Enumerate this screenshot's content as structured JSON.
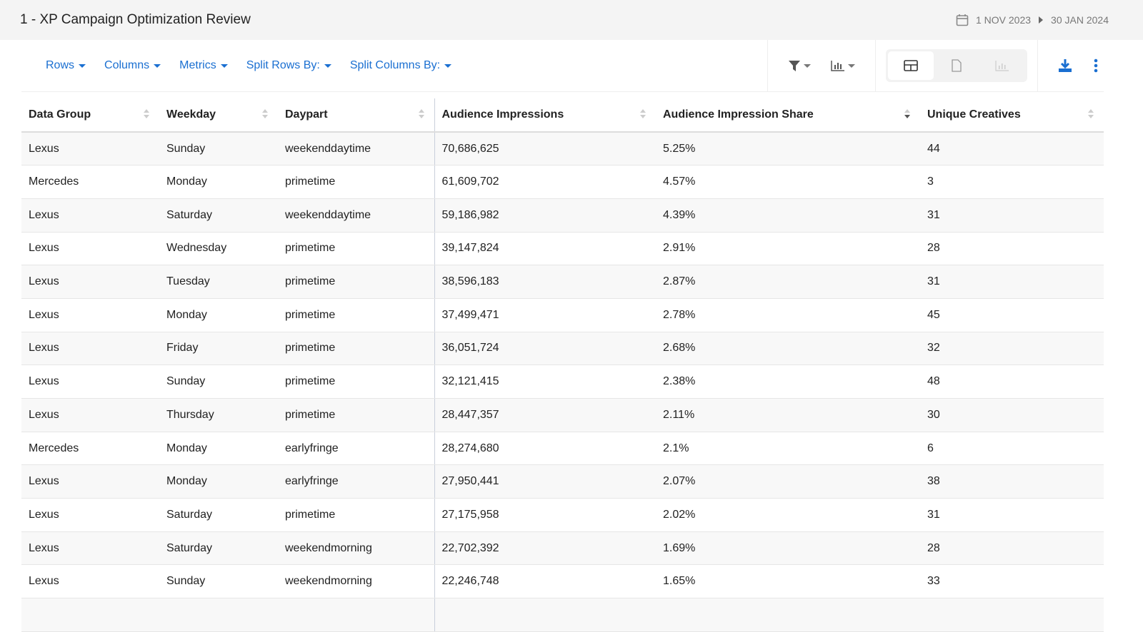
{
  "header": {
    "title": "1 - XP Campaign Optimization Review",
    "date_start": "1 NOV 2023",
    "date_end": "30 JAN 2024"
  },
  "toolbar": {
    "menus": [
      "Rows",
      "Columns",
      "Metrics",
      "Split Rows By:",
      "Split Columns By:"
    ],
    "active_view": "table",
    "accent": "#1a6fd1"
  },
  "table": {
    "columns": [
      "Data Group",
      "Weekday",
      "Daypart",
      "Audience Impressions",
      "Audience Impression Share",
      "Unique Creatives"
    ],
    "sorted_column": "Audience Impression Share",
    "sort_direction": "descending",
    "rows": [
      [
        "Lexus",
        "Sunday",
        "weekenddaytime",
        "70,686,625",
        "5.25%",
        "44"
      ],
      [
        "Mercedes",
        "Monday",
        "primetime",
        "61,609,702",
        "4.57%",
        "3"
      ],
      [
        "Lexus",
        "Saturday",
        "weekenddaytime",
        "59,186,982",
        "4.39%",
        "31"
      ],
      [
        "Lexus",
        "Wednesday",
        "primetime",
        "39,147,824",
        "2.91%",
        "28"
      ],
      [
        "Lexus",
        "Tuesday",
        "primetime",
        "38,596,183",
        "2.87%",
        "31"
      ],
      [
        "Lexus",
        "Monday",
        "primetime",
        "37,499,471",
        "2.78%",
        "45"
      ],
      [
        "Lexus",
        "Friday",
        "primetime",
        "36,051,724",
        "2.68%",
        "32"
      ],
      [
        "Lexus",
        "Sunday",
        "primetime",
        "32,121,415",
        "2.38%",
        "48"
      ],
      [
        "Lexus",
        "Thursday",
        "primetime",
        "28,447,357",
        "2.11%",
        "30"
      ],
      [
        "Mercedes",
        "Monday",
        "earlyfringe",
        "28,274,680",
        "2.1%",
        "6"
      ],
      [
        "Lexus",
        "Monday",
        "earlyfringe",
        "27,950,441",
        "2.07%",
        "38"
      ],
      [
        "Lexus",
        "Saturday",
        "primetime",
        "27,175,958",
        "2.02%",
        "31"
      ],
      [
        "Lexus",
        "Saturday",
        "weekendmorning",
        "22,702,392",
        "1.69%",
        "28"
      ],
      [
        "Lexus",
        "Sunday",
        "weekendmorning",
        "22,246,748",
        "1.65%",
        "33"
      ]
    ]
  }
}
